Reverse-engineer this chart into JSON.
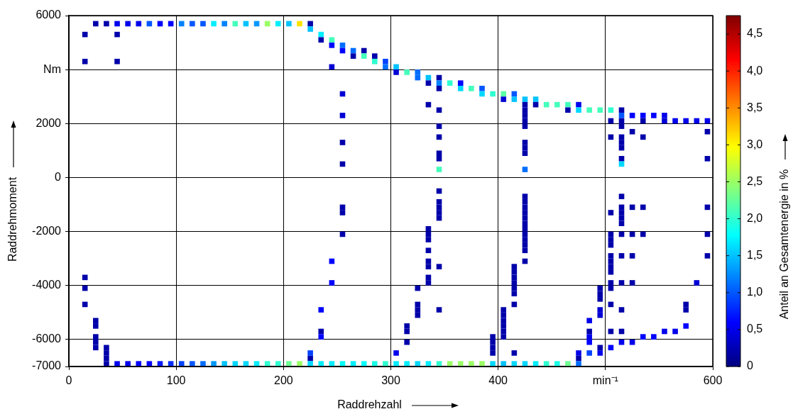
{
  "chart_data": {
    "type": "scatter",
    "marker": "square",
    "xlabel": "Raddrehzahl",
    "ylabel": "Raddrehmoment",
    "clabel": "Anteil an Gesamtenergie in %",
    "xlim": [
      0,
      600
    ],
    "xticks": [
      0,
      100,
      200,
      300,
      400,
      {
        "value": 500,
        "label": "min⁻¹"
      },
      600
    ],
    "ylim": [
      -7000,
      6000
    ],
    "yticks": [
      6000,
      {
        "value": 4000,
        "label": "Nm"
      },
      2000,
      0,
      -2000,
      -4000,
      -6000,
      -7000
    ],
    "clim": [
      0,
      4.75
    ],
    "cticks": [
      0,
      {
        "value": 0.5,
        "label": "0,5"
      },
      {
        "value": 1,
        "label": "1,0"
      },
      {
        "value": 1.5,
        "label": "1,5"
      },
      {
        "value": 2,
        "label": "2,0"
      },
      {
        "value": 2.5,
        "label": "2,5"
      },
      {
        "value": 3,
        "label": "3,0"
      },
      {
        "value": 3.5,
        "label": "3,5"
      },
      {
        "value": 4,
        "label": "4,0"
      },
      {
        "value": 4.5,
        "label": "4,5"
      }
    ],
    "grid": true,
    "legend": false,
    "x": [
      25,
      35,
      45,
      55,
      65,
      75,
      85,
      95,
      105,
      115,
      125,
      135,
      145,
      155,
      165,
      175,
      185,
      195,
      205,
      215,
      225,
      225,
      15,
      45,
      235,
      235,
      245,
      245,
      255,
      255,
      265,
      275,
      265,
      275,
      285,
      15,
      45,
      285,
      295,
      245,
      295,
      305,
      305,
      315,
      325,
      325,
      335,
      345,
      335,
      345,
      355,
      365,
      345,
      365,
      375,
      385,
      255,
      385,
      395,
      405,
      415,
      405,
      415,
      425,
      435,
      335,
      425,
      435,
      445,
      455,
      465,
      475,
      345,
      425,
      465,
      475,
      485,
      495,
      505,
      515,
      255,
      425,
      515,
      525,
      535,
      545,
      555,
      425,
      505,
      515,
      535,
      555,
      565,
      575,
      585,
      595,
      345,
      425,
      515,
      525,
      595,
      345,
      505,
      515,
      535,
      255,
      425,
      515,
      425,
      515,
      345,
      425,
      345,
      515,
      595,
      255,
      515,
      345,
      425,
      345,
      425,
      515,
      345,
      425,
      255,
      345,
      425,
      515,
      525,
      535,
      595,
      255,
      345,
      425,
      505,
      515,
      345,
      425,
      515,
      425,
      515,
      335,
      425,
      255,
      335,
      425,
      505,
      515,
      525,
      535,
      595,
      335,
      425,
      505,
      425,
      505,
      335,
      425,
      505,
      515,
      525,
      595,
      245,
      335,
      425,
      505,
      335,
      345,
      415,
      505,
      415,
      505,
      15,
      335,
      415,
      245,
      335,
      415,
      505,
      515,
      525,
      585,
      15,
      325,
      415,
      495,
      505,
      415,
      495,
      495,
      15,
      325,
      415,
      505,
      575,
      235,
      325,
      345,
      405,
      495,
      515,
      575,
      325,
      405,
      495,
      25,
      405,
      485,
      25,
      315,
      405,
      575,
      235,
      315,
      405,
      485,
      505,
      515,
      555,
      565,
      25,
      235,
      395,
      405,
      485,
      535,
      545,
      25,
      315,
      395,
      485,
      515,
      525,
      25,
      35,
      395,
      495,
      505,
      35,
      225,
      305,
      395,
      415,
      475,
      485,
      495,
      35,
      225,
      475,
      35,
      45,
      55,
      65,
      75,
      85,
      95,
      105,
      115,
      125,
      135,
      145,
      155,
      165,
      175,
      185,
      195,
      205,
      215,
      225,
      235,
      245,
      255,
      265,
      275,
      285,
      295,
      305,
      315,
      325,
      335,
      345,
      355,
      365,
      375,
      385,
      395,
      405,
      415,
      425,
      435,
      445,
      455,
      465,
      475
    ],
    "values": [
      5700,
      5700,
      5700,
      5700,
      5700,
      5700,
      5700,
      5700,
      5700,
      5700,
      5700,
      5700,
      5700,
      5700,
      5700,
      5700,
      5700,
      5700,
      5700,
      5700,
      5700,
      5500,
      5300,
      5300,
      5300,
      5100,
      5100,
      4900,
      4900,
      4700,
      4700,
      4700,
      4500,
      4500,
      4500,
      4300,
      4300,
      4300,
      4300,
      4100,
      4100,
      4100,
      3900,
      3900,
      3900,
      3700,
      3700,
      3700,
      3500,
      3500,
      3500,
      3500,
      3300,
      3300,
      3300,
      3300,
      3100,
      3100,
      3100,
      3100,
      3100,
      2900,
      2900,
      2900,
      2900,
      2700,
      2700,
      2700,
      2700,
      2700,
      2700,
      2700,
      2500,
      2500,
      2500,
      2500,
      2500,
      2500,
      2500,
      2500,
      2300,
      2300,
      2300,
      2300,
      2300,
      2300,
      2300,
      2100,
      2100,
      2100,
      2100,
      2100,
      2100,
      2100,
      2100,
      2100,
      1900,
      1900,
      1900,
      1700,
      1700,
      1500,
      1500,
      1500,
      1500,
      1300,
      1300,
      1300,
      1100,
      1100,
      900,
      900,
      700,
      700,
      700,
      500,
      500,
      300,
      300,
      -500,
      -700,
      -700,
      -900,
      -900,
      -1100,
      -1100,
      -1100,
      -1100,
      -1100,
      -1100,
      -1100,
      -1300,
      -1300,
      -1300,
      -1300,
      -1300,
      -1500,
      -1500,
      -1500,
      -1700,
      -1700,
      -1900,
      -1900,
      -2100,
      -2100,
      -2100,
      -2100,
      -2100,
      -2100,
      -2100,
      -2100,
      -2300,
      -2300,
      -2300,
      -2500,
      -2500,
      -2700,
      -2700,
      -2900,
      -2900,
      -2900,
      -2900,
      -3100,
      -3100,
      -3100,
      -3100,
      -3300,
      -3300,
      -3300,
      -3300,
      -3500,
      -3500,
      -3700,
      -3700,
      -3700,
      -3900,
      -3900,
      -3900,
      -3900,
      -3900,
      -3900,
      -3900,
      -4100,
      -4100,
      -4100,
      -4100,
      -4100,
      -4300,
      -4300,
      -4500,
      -4700,
      -4700,
      -4700,
      -4700,
      -4700,
      -4900,
      -4900,
      -4900,
      -4900,
      -4900,
      -4900,
      -4900,
      -5100,
      -5100,
      -5100,
      -5300,
      -5300,
      -5300,
      -5500,
      -5500,
      -5500,
      -5500,
      -5700,
      -5700,
      -5700,
      -5700,
      -5700,
      -5700,
      -5700,
      -5700,
      -5900,
      -5900,
      -5900,
      -5900,
      -5900,
      -5900,
      -5900,
      -6100,
      -6100,
      -6100,
      -6100,
      -6100,
      -6100,
      -6300,
      -6300,
      -6300,
      -6300,
      -6300,
      -6500,
      -6500,
      -6500,
      -6500,
      -6500,
      -6500,
      -6500,
      -6500,
      -6700,
      -6700,
      -6700,
      -6900,
      -6900,
      -6900,
      -6900,
      -6900,
      -6900,
      -6900,
      -6900,
      -6900,
      -6900,
      -6900,
      -6900,
      -6900,
      -6900,
      -6900,
      -6900,
      -6900,
      -6900,
      -6900,
      -6900,
      -6900,
      -6900,
      -6900,
      -6900,
      -6900,
      -6900,
      -6900,
      -6900,
      -6900,
      -6900,
      -6900,
      -6900,
      -6900,
      -6900,
      -6900,
      -6900,
      -6900,
      -6900,
      -6900,
      -6900,
      -6900,
      -6900,
      -6900,
      -6900,
      -6900
    ],
    "cvalues": [
      0.2,
      0.2,
      0.5,
      0.5,
      0.5,
      1.0,
      0.6,
      0.6,
      1.2,
      1.0,
      1.0,
      1.7,
      1.2,
      2.1,
      1.5,
      1.3,
      2.5,
      1.7,
      1.5,
      3.1,
      0.2,
      1.5,
      0.2,
      0.2,
      1.7,
      0.2,
      2.1,
      0.6,
      1.1,
      0.6,
      1.1,
      0.2,
      0.2,
      2.1,
      0.2,
      0.2,
      0.2,
      2.0,
      0.9,
      0.4,
      1.1,
      1.5,
      0.4,
      2.1,
      1.1,
      1.1,
      1.5,
      0.2,
      0.2,
      1.2,
      2.0,
      0.6,
      0.2,
      1.6,
      2.1,
      1.0,
      0.4,
      1.6,
      2.0,
      2.2,
      1.0,
      0.4,
      1.5,
      1.5,
      1.5,
      0.2,
      0.2,
      0.2,
      2.1,
      2.1,
      2.1,
      0.5,
      0.2,
      0.2,
      0.2,
      1.6,
      2.1,
      2.1,
      2.0,
      0.2,
      0.4,
      0.2,
      1.0,
      0.6,
      0.6,
      0.6,
      0.5,
      0.2,
      0.2,
      0.2,
      0.2,
      0.4,
      0.5,
      0.5,
      0.5,
      0.5,
      0.2,
      0.2,
      0.2,
      0.2,
      0.2,
      0.2,
      0.2,
      0.2,
      0.2,
      0.2,
      0.2,
      0.2,
      0.2,
      0.2,
      0.2,
      0.2,
      0.2,
      0.2,
      0.2,
      0.2,
      1.6,
      2.1,
      1.1,
      0.2,
      0.2,
      0.2,
      0.2,
      0.2,
      0.2,
      0.2,
      0.2,
      0.2,
      0.2,
      0.2,
      0.2,
      0.2,
      0.2,
      0.2,
      0.2,
      0.2,
      0.2,
      0.2,
      0.2,
      0.2,
      0.2,
      0.2,
      0.2,
      0.2,
      0.2,
      0.2,
      0.2,
      0.2,
      0.2,
      0.2,
      0.2,
      0.2,
      0.2,
      0.2,
      0.2,
      0.2,
      0.2,
      0.2,
      0.2,
      0.2,
      0.2,
      0.2,
      0.6,
      0.2,
      0.2,
      0.2,
      0.2,
      0.2,
      0.2,
      0.2,
      0.2,
      0.2,
      0.2,
      0.2,
      0.2,
      0.6,
      0.2,
      0.2,
      0.2,
      0.2,
      0.2,
      0.4,
      0.2,
      0.2,
      0.2,
      0.2,
      0.2,
      0.2,
      0.2,
      0.2,
      0.2,
      0.2,
      0.2,
      0.2,
      0.2,
      0.6,
      0.2,
      0.2,
      0.2,
      0.4,
      0.2,
      0.2,
      0.2,
      0.2,
      0.4,
      0.2,
      0.2,
      0.5,
      0.2,
      0.2,
      0.2,
      0.6,
      0.2,
      0.2,
      0.2,
      0.2,
      0.2,
      0.2,
      0.5,
      0.5,
      0.2,
      0.6,
      0.2,
      0.2,
      0.5,
      0.6,
      0.6,
      0.2,
      0.2,
      0.2,
      0.6,
      0.5,
      0.5,
      0.2,
      0.2,
      0.2,
      0.2,
      0.6,
      0.2,
      0.9,
      0.5,
      0.2,
      0.2,
      0.5,
      0.9,
      0.5,
      0.2,
      0.2,
      0.2,
      0.2,
      0.5,
      0.5,
      0.6,
      0.6,
      0.7,
      0.8,
      0.9,
      1.0,
      1.1,
      1.3,
      1.5,
      1.6,
      1.6,
      1.7,
      2.0,
      2.0,
      2.3,
      2.5,
      1.6,
      1.7,
      1.7,
      1.8,
      1.7,
      1.8,
      1.9,
      2.0,
      1.7,
      1.7,
      1.6,
      1.7,
      2.0,
      2.5,
      2.5,
      2.5,
      2.5,
      1.6,
      1.5,
      1.6,
      1.6,
      1.7,
      2.0,
      1.9,
      2.3,
      1.1
    ]
  }
}
